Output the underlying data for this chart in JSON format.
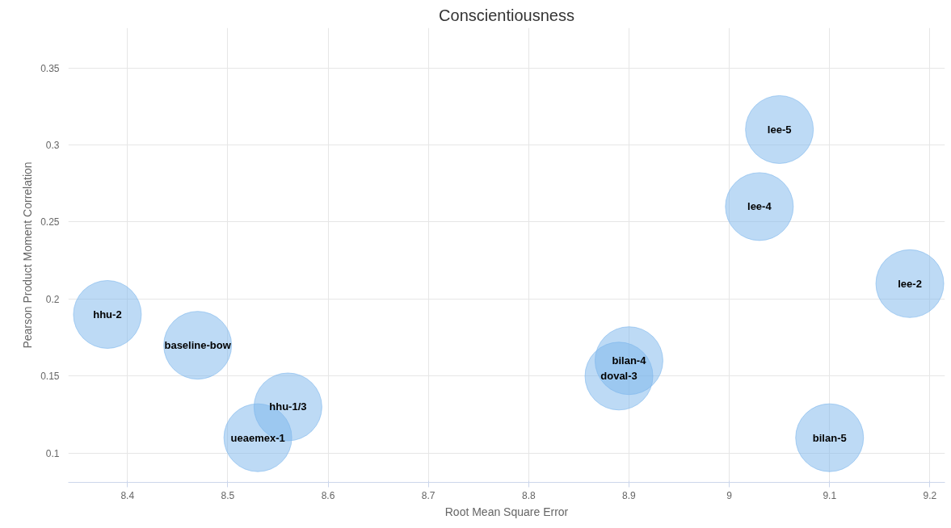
{
  "chart_data": {
    "type": "bubble",
    "title": "Conscientiousness",
    "xlabel": "Root Mean Square Error",
    "ylabel": "Pearson Product Moment Correlation",
    "x": [
      8.38,
      8.47,
      8.53,
      8.56,
      8.89,
      8.9,
      9.03,
      9.05,
      9.18,
      9.1
    ],
    "series": [
      {
        "color": "#7cb5ec",
        "values": [
          0.19,
          0.17,
          0.11,
          0.13,
          0.15,
          0.16,
          0.26,
          0.31,
          0.21,
          0.11
        ],
        "sizes": [
          1,
          1,
          1,
          1,
          1,
          1,
          1,
          1,
          1,
          1
        ]
      }
    ],
    "annotations": [
      {
        "text": "hhu-2",
        "x": 8.38,
        "y": 0.19
      },
      {
        "text": "baseline-bow",
        "x": 8.47,
        "y": 0.17
      },
      {
        "text": "ueaemex-1",
        "x": 8.53,
        "y": 0.11
      },
      {
        "text": "hhu-1/3",
        "x": 8.56,
        "y": 0.13
      },
      {
        "text": "doval-3",
        "x": 8.89,
        "y": 0.15
      },
      {
        "text": "bilan-4",
        "x": 8.9,
        "y": 0.16
      },
      {
        "text": "lee-4",
        "x": 9.03,
        "y": 0.26
      },
      {
        "text": "lee-5",
        "x": 9.05,
        "y": 0.31
      },
      {
        "text": "lee-2",
        "x": 9.18,
        "y": 0.21
      },
      {
        "text": "bilan-5",
        "x": 9.1,
        "y": 0.11
      }
    ],
    "xlim": [
      8.341,
      9.215
    ],
    "ylim": [
      0.081,
      0.376
    ],
    "xticks": [
      8.4,
      8.5,
      8.6,
      8.7,
      8.8,
      8.9,
      9,
      9.1,
      9.2
    ],
    "yticks": [
      0.1,
      0.15,
      0.2,
      0.25,
      0.3,
      0.35
    ],
    "grid": true
  }
}
